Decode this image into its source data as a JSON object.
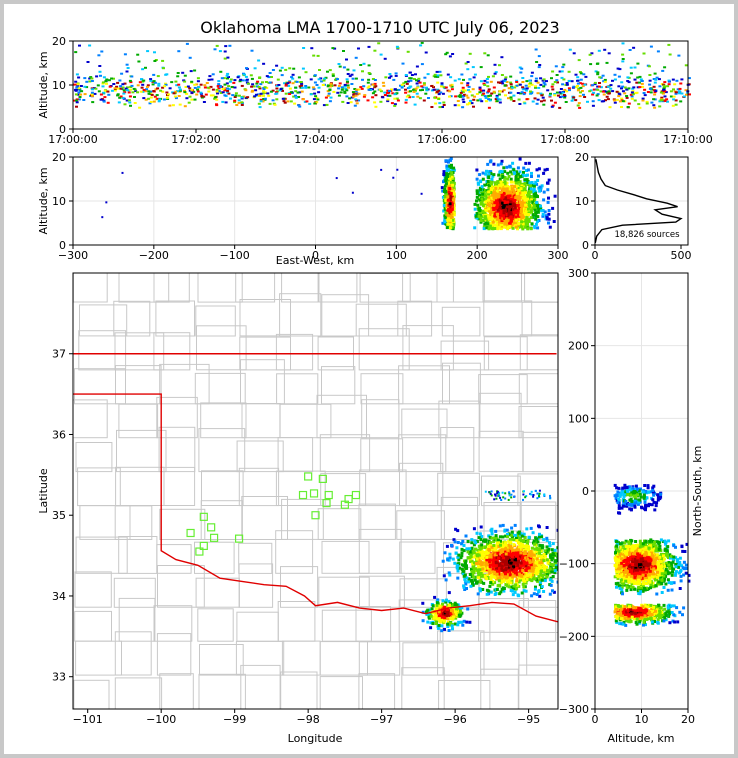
{
  "title": "Oklahoma LMA 1700-1710 UTC July 06, 2023",
  "colors": {
    "state_border": "#e00000",
    "county_lines": "#c8c8c8",
    "stations": "#66ee33",
    "histogram": "#000000"
  },
  "colormap": [
    "#0000cc",
    "#0080ff",
    "#00c8ff",
    "#00aa00",
    "#66dd00",
    "#ffff00",
    "#ffaa00",
    "#ff0000",
    "#aa0000",
    "#000000"
  ],
  "chart_data": [
    {
      "name": "time-height",
      "type": "heatmap",
      "xlabel": "",
      "ylabel": "Altitude, km",
      "x_tick_labels": [
        "17:00:00",
        "17:02:00",
        "17:04:00",
        "17:06:00",
        "17:08:00",
        "17:10:00"
      ],
      "x_range_minutes": [
        0,
        10
      ],
      "ylim": [
        0,
        20
      ],
      "y_ticks": [
        0,
        10,
        20
      ],
      "altitude_band_km": [
        5,
        20
      ],
      "dense_core_km": [
        6,
        12
      ]
    },
    {
      "name": "east-west-altitude",
      "type": "heatmap",
      "xlabel": "East-West, km",
      "ylabel": "Altitude, km",
      "xlim": [
        -300,
        300
      ],
      "x_ticks": [
        -300,
        -200,
        -100,
        0,
        100,
        200,
        300
      ],
      "ylim": [
        0,
        20
      ],
      "y_ticks": [
        0,
        10,
        20
      ],
      "cells": [
        {
          "x": [
            155,
            170
          ],
          "z": [
            4,
            20
          ],
          "core_x": 165,
          "core_z": 10
        },
        {
          "x": [
            195,
            295
          ],
          "z": [
            4,
            20
          ],
          "core_x": 235,
          "core_z": 9
        }
      ],
      "scattered_x": [
        -265,
        -260,
        -240,
        25,
        45,
        80,
        95,
        100,
        130
      ]
    },
    {
      "name": "altitude-histogram",
      "type": "line",
      "xlim": [
        0,
        500
      ],
      "x_ticks": [
        0,
        500
      ],
      "ylim": [
        0,
        20
      ],
      "y_ticks": [
        0,
        10,
        20
      ],
      "annotation": "18,826 sources",
      "profile": [
        {
          "z": 0.5,
          "n": 2
        },
        {
          "z": 2,
          "n": 10
        },
        {
          "z": 3.5,
          "n": 40
        },
        {
          "z": 4.5,
          "n": 160
        },
        {
          "z": 5.2,
          "n": 470
        },
        {
          "z": 6,
          "n": 500
        },
        {
          "z": 7,
          "n": 390
        },
        {
          "z": 8,
          "n": 350
        },
        {
          "z": 8.7,
          "n": 480
        },
        {
          "z": 9.5,
          "n": 420
        },
        {
          "z": 10.5,
          "n": 300
        },
        {
          "z": 11.5,
          "n": 220
        },
        {
          "z": 12.5,
          "n": 130
        },
        {
          "z": 13.5,
          "n": 60
        },
        {
          "z": 15,
          "n": 35
        },
        {
          "z": 16.5,
          "n": 20
        },
        {
          "z": 18,
          "n": 12
        },
        {
          "z": 19.5,
          "n": 5
        }
      ]
    },
    {
      "name": "plan-view",
      "type": "scatter",
      "xlabel": "Longitude",
      "ylabel": "Latitude",
      "xlim": [
        -101.2,
        -94.6
      ],
      "ylim": [
        32.6,
        38.0
      ],
      "x_ticks": [
        -101,
        -100,
        -99,
        -98,
        -97,
        -96,
        -95
      ],
      "y_ticks": [
        33,
        34,
        35,
        36,
        37
      ],
      "stations": [
        [
          -99.42,
          34.98
        ],
        [
          -99.6,
          34.78
        ],
        [
          -99.32,
          34.85
        ],
        [
          -99.28,
          34.72
        ],
        [
          -99.48,
          34.55
        ],
        [
          -99.42,
          34.62
        ],
        [
          -98.94,
          34.71
        ],
        [
          -98.0,
          35.48
        ],
        [
          -97.8,
          35.45
        ],
        [
          -98.07,
          35.25
        ],
        [
          -97.92,
          35.27
        ],
        [
          -97.72,
          35.25
        ],
        [
          -97.45,
          35.2
        ],
        [
          -97.35,
          35.25
        ],
        [
          -97.75,
          35.15
        ],
        [
          -97.5,
          35.13
        ],
        [
          -97.9,
          35.0
        ]
      ],
      "cells": [
        {
          "lon": -95.3,
          "lat": 34.4,
          "core_lon": -95.28,
          "core_lat": 34.43
        },
        {
          "lon": -96.15,
          "lat": 33.8
        }
      ]
    },
    {
      "name": "altitude-north-south",
      "type": "heatmap",
      "xlabel": "Altitude, km",
      "ylabel": "North-South, km",
      "xlim": [
        0,
        20
      ],
      "x_ticks": [
        0,
        10,
        20
      ],
      "ylim": [
        -300,
        300
      ],
      "y_ticks": [
        -300,
        -200,
        -100,
        0,
        100,
        200,
        300
      ],
      "bands": [
        {
          "y": [
            -140,
            -65
          ],
          "z": [
            4,
            20
          ],
          "core_y": -100,
          "core_z": 9
        },
        {
          "y": [
            -185,
            -155
          ],
          "z": [
            4,
            20
          ],
          "core_y": -165,
          "core_z": 8
        },
        {
          "y": [
            -30,
            10
          ],
          "z": [
            4,
            14
          ],
          "core_y": -5,
          "core_z": 8
        }
      ]
    }
  ]
}
